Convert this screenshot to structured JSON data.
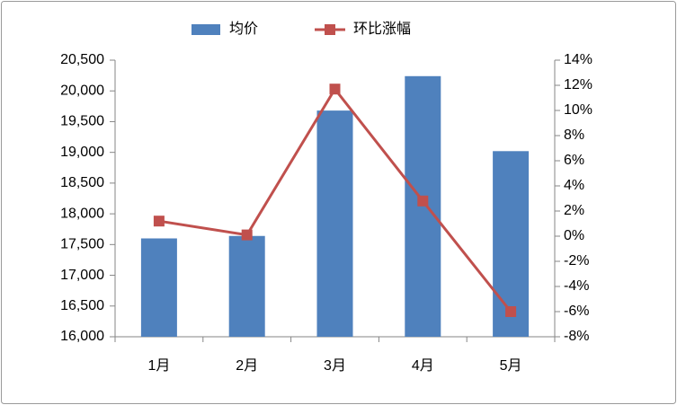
{
  "chart_data": {
    "type": "bar",
    "categories": [
      "1月",
      "2月",
      "3月",
      "4月",
      "5月"
    ],
    "series": [
      {
        "name": "均价",
        "type": "bar",
        "color": "#4f81bd",
        "values": [
          17600,
          17640,
          19680,
          20240,
          19020
        ]
      },
      {
        "name": "环比涨幅",
        "type": "line",
        "axis": "y2",
        "color": "#c0504d",
        "values": [
          1.2,
          0.1,
          11.7,
          2.8,
          -6.0
        ]
      }
    ],
    "ylim": [
      16000,
      20500
    ],
    "yticks": [
      {
        "value": 16000,
        "label": "16,000"
      },
      {
        "value": 16500,
        "label": "16,500"
      },
      {
        "value": 17000,
        "label": "17,000"
      },
      {
        "value": 17500,
        "label": "17,500"
      },
      {
        "value": 18000,
        "label": "18,000"
      },
      {
        "value": 18500,
        "label": "18,500"
      },
      {
        "value": 19000,
        "label": "19,000"
      },
      {
        "value": 19500,
        "label": "19,500"
      },
      {
        "value": 20000,
        "label": "20,000"
      },
      {
        "value": 20500,
        "label": "20,500"
      }
    ],
    "y2lim": [
      -8,
      14
    ],
    "y2ticks": [
      {
        "value": -8,
        "label": "-8%"
      },
      {
        "value": -6,
        "label": "-6%"
      },
      {
        "value": -4,
        "label": "-4%"
      },
      {
        "value": -2,
        "label": "-2%"
      },
      {
        "value": 0,
        "label": "0%"
      },
      {
        "value": 2,
        "label": "2%"
      },
      {
        "value": 4,
        "label": "4%"
      },
      {
        "value": 6,
        "label": "6%"
      },
      {
        "value": 8,
        "label": "8%"
      },
      {
        "value": 10,
        "label": "10%"
      },
      {
        "value": 12,
        "label": "12%"
      },
      {
        "value": 14,
        "label": "14%"
      }
    ],
    "legend": "top"
  }
}
